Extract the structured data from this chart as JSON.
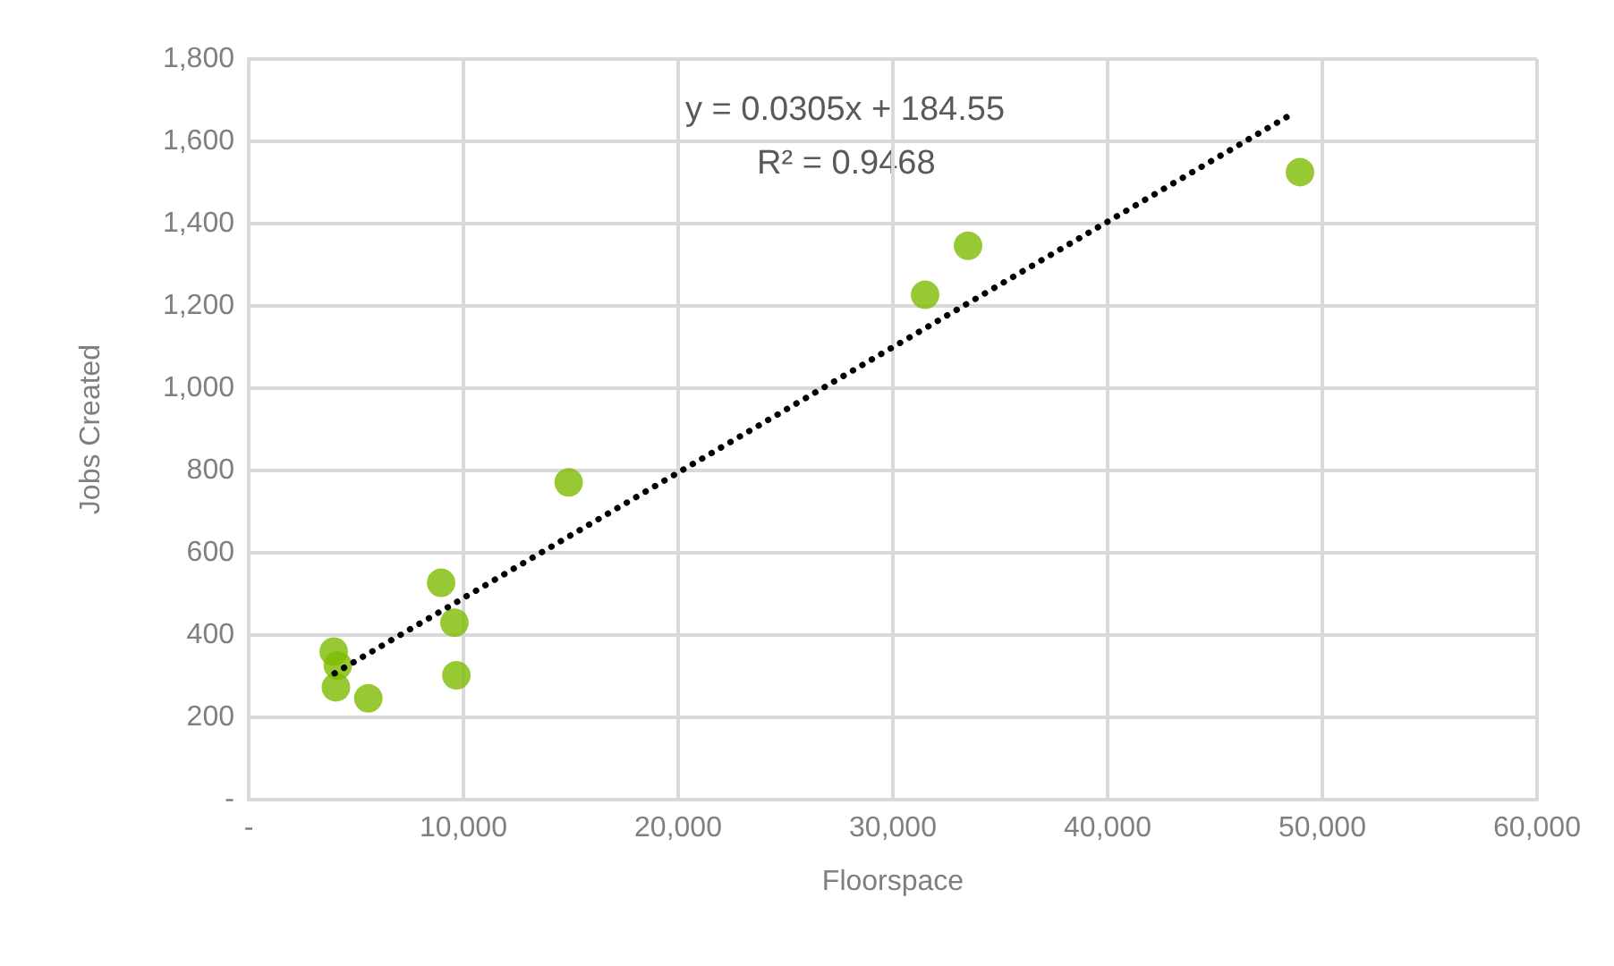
{
  "chart_data": {
    "type": "scatter",
    "xlabel": "Floorspace",
    "ylabel": "Jobs Created",
    "xlim": [
      0,
      60000
    ],
    "ylim": [
      0,
      1800
    ],
    "xticks": [
      {
        "value": 0,
        "label": "-"
      },
      {
        "value": 10000,
        "label": "10,000"
      },
      {
        "value": 20000,
        "label": "20,000"
      },
      {
        "value": 30000,
        "label": "30,000"
      },
      {
        "value": 40000,
        "label": "40,000"
      },
      {
        "value": 50000,
        "label": "50,000"
      },
      {
        "value": 60000,
        "label": "60,000"
      }
    ],
    "yticks": [
      {
        "value": 0,
        "label": "-"
      },
      {
        "value": 200,
        "label": "200"
      },
      {
        "value": 400,
        "label": "400"
      },
      {
        "value": 600,
        "label": "600"
      },
      {
        "value": 800,
        "label": "800"
      },
      {
        "value": 1000,
        "label": "1,000"
      },
      {
        "value": 1200,
        "label": "1,200"
      },
      {
        "value": 1400,
        "label": "1,400"
      },
      {
        "value": 1600,
        "label": "1,600"
      },
      {
        "value": 1800,
        "label": "1,800"
      }
    ],
    "grid": true,
    "annotations": [
      "y = 0.0305x + 184.55",
      "R² = 0.9468"
    ],
    "series": [
      {
        "color": "#7cbb00",
        "marker": "circle",
        "x": [
          3960,
          4150,
          4060,
          5570,
          8960,
          9580,
          9670,
          14900,
          31500,
          33500,
          48960
        ],
        "values": [
          360,
          326,
          273,
          246,
          527,
          430,
          302,
          771,
          1227,
          1346,
          1525
        ]
      },
      {
        "type": "line",
        "color": "#000000",
        "marker": "none",
        "line_style": "dotted",
        "x": [
          4000,
          48600
        ],
        "values": [
          307,
          1667
        ]
      }
    ]
  }
}
